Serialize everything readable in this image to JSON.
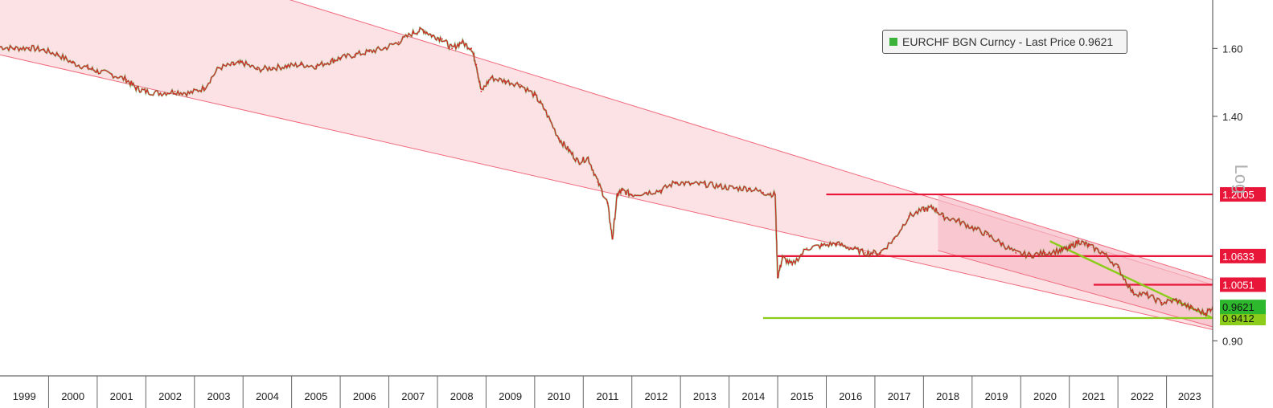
{
  "chart_data": {
    "type": "line",
    "scale": "log",
    "ylim": [
      0.84,
      1.76
    ],
    "x_range": [
      1999.0,
      2023.95
    ],
    "legend": {
      "label": "EURCHF BGN Curncy - Last Price 0.9621",
      "placement": "top-right"
    },
    "y_scale_label": "Log",
    "x_tick_labels": [
      "1999",
      "2000",
      "2001",
      "2002",
      "2003",
      "2004",
      "2005",
      "2006",
      "2007",
      "2008",
      "2009",
      "2010",
      "2011",
      "2012",
      "2013",
      "2014",
      "2015",
      "2016",
      "2017",
      "2018",
      "2019",
      "2020",
      "2021",
      "2022",
      "2023"
    ],
    "y_ticks": [
      {
        "value": 0.9,
        "label": "0.90"
      },
      {
        "value": 1.4,
        "label": "1.40"
      },
      {
        "value": 1.6,
        "label": "1.60"
      }
    ],
    "series": [
      {
        "name": "EURCHF BGN Curncy - Last Price",
        "color": "#d42020",
        "x": [
          1999.0,
          1999.3,
          1999.6,
          1999.9,
          2000.2,
          2000.5,
          2000.8,
          2001.0,
          2001.3,
          2001.6,
          2001.8,
          2002.0,
          2002.3,
          2002.6,
          2002.9,
          2003.2,
          2003.5,
          2003.8,
          2004.0,
          2004.3,
          2004.6,
          2004.9,
          2005.2,
          2005.5,
          2005.8,
          2006.0,
          2006.3,
          2006.6,
          2006.9,
          2007.2,
          2007.5,
          2007.7,
          2007.9,
          2008.1,
          2008.3,
          2008.5,
          2008.7,
          2008.8,
          2008.9,
          2009.1,
          2009.4,
          2009.7,
          2010.0,
          2010.2,
          2010.5,
          2010.7,
          2010.9,
          2011.1,
          2011.3,
          2011.5,
          2011.6,
          2011.7,
          2011.8,
          2012.0,
          2012.3,
          2012.6,
          2012.9,
          2013.2,
          2013.5,
          2013.8,
          2014.1,
          2014.4,
          2014.7,
          2014.95,
          2015.0,
          2015.1,
          2015.3,
          2015.6,
          2015.9,
          2016.2,
          2016.5,
          2016.8,
          2017.1,
          2017.4,
          2017.7,
          2018.0,
          2018.2,
          2018.4,
          2018.7,
          2019.0,
          2019.3,
          2019.6,
          2019.9,
          2020.2,
          2020.5,
          2020.8,
          2021.0,
          2021.2,
          2021.4,
          2021.7,
          2022.0,
          2022.3,
          2022.6,
          2022.9,
          2023.2,
          2023.5,
          2023.8,
          2023.95
        ],
        "values": [
          1.605,
          1.6,
          1.602,
          1.595,
          1.58,
          1.555,
          1.54,
          1.53,
          1.52,
          1.505,
          1.48,
          1.47,
          1.465,
          1.47,
          1.465,
          1.48,
          1.54,
          1.55,
          1.555,
          1.535,
          1.54,
          1.545,
          1.55,
          1.545,
          1.56,
          1.57,
          1.58,
          1.59,
          1.6,
          1.62,
          1.65,
          1.66,
          1.64,
          1.63,
          1.6,
          1.62,
          1.6,
          1.55,
          1.47,
          1.51,
          1.5,
          1.49,
          1.46,
          1.42,
          1.34,
          1.31,
          1.28,
          1.29,
          1.23,
          1.18,
          1.1,
          1.2,
          1.21,
          1.2,
          1.205,
          1.21,
          1.23,
          1.225,
          1.225,
          1.22,
          1.215,
          1.215,
          1.205,
          1.2,
          1.02,
          1.06,
          1.045,
          1.08,
          1.085,
          1.09,
          1.08,
          1.07,
          1.07,
          1.1,
          1.15,
          1.165,
          1.17,
          1.15,
          1.14,
          1.125,
          1.11,
          1.09,
          1.07,
          1.065,
          1.07,
          1.075,
          1.08,
          1.095,
          1.085,
          1.07,
          1.04,
          0.99,
          0.985,
          0.97,
          0.975,
          0.96,
          0.95,
          0.9621
        ]
      }
    ],
    "horizontal_levels": [
      {
        "value": 1.2005,
        "label": "1.2005",
        "color": "#e8173a",
        "x_start": 2016.0
      },
      {
        "value": 1.0633,
        "label": "1.0633",
        "color": "#e8173a",
        "x_start": 2015.0
      },
      {
        "value": 1.0051,
        "label": "1.0051",
        "color": "#e8173a",
        "x_start": 2021.5
      },
      {
        "value": 0.9412,
        "label": "0.9412",
        "color": "#8ccc1a",
        "x_start": 2014.7
      }
    ],
    "last_price_marker": {
      "value": 0.9621,
      "label": "0.9621",
      "color": "#2db82d"
    },
    "trendlines": [
      {
        "name": "downtrend",
        "color": "#8ccc1a",
        "x": [
          2020.6,
          2023.95
        ],
        "values": [
          1.095,
          0.9412
        ]
      }
    ],
    "channels": [
      {
        "name": "long-term channel",
        "color": "#fbd7dc",
        "edge": "#f06a7d",
        "upper": {
          "x": [
            1999.0,
            2023.95
          ],
          "values": [
            2.1,
            1.005
          ]
        },
        "lower": {
          "x": [
            1999.0,
            2023.95
          ],
          "values": [
            1.58,
            0.92
          ]
        }
      },
      {
        "name": "short-term channel",
        "color": "#f7bcc6",
        "edge": "#f06a7d",
        "upper": {
          "x": [
            2018.3,
            2023.95
          ],
          "values": [
            1.2005,
            1.015
          ]
        },
        "lower": {
          "x": [
            2018.3,
            2023.95
          ],
          "values": [
            1.075,
            0.925
          ]
        }
      }
    ]
  }
}
